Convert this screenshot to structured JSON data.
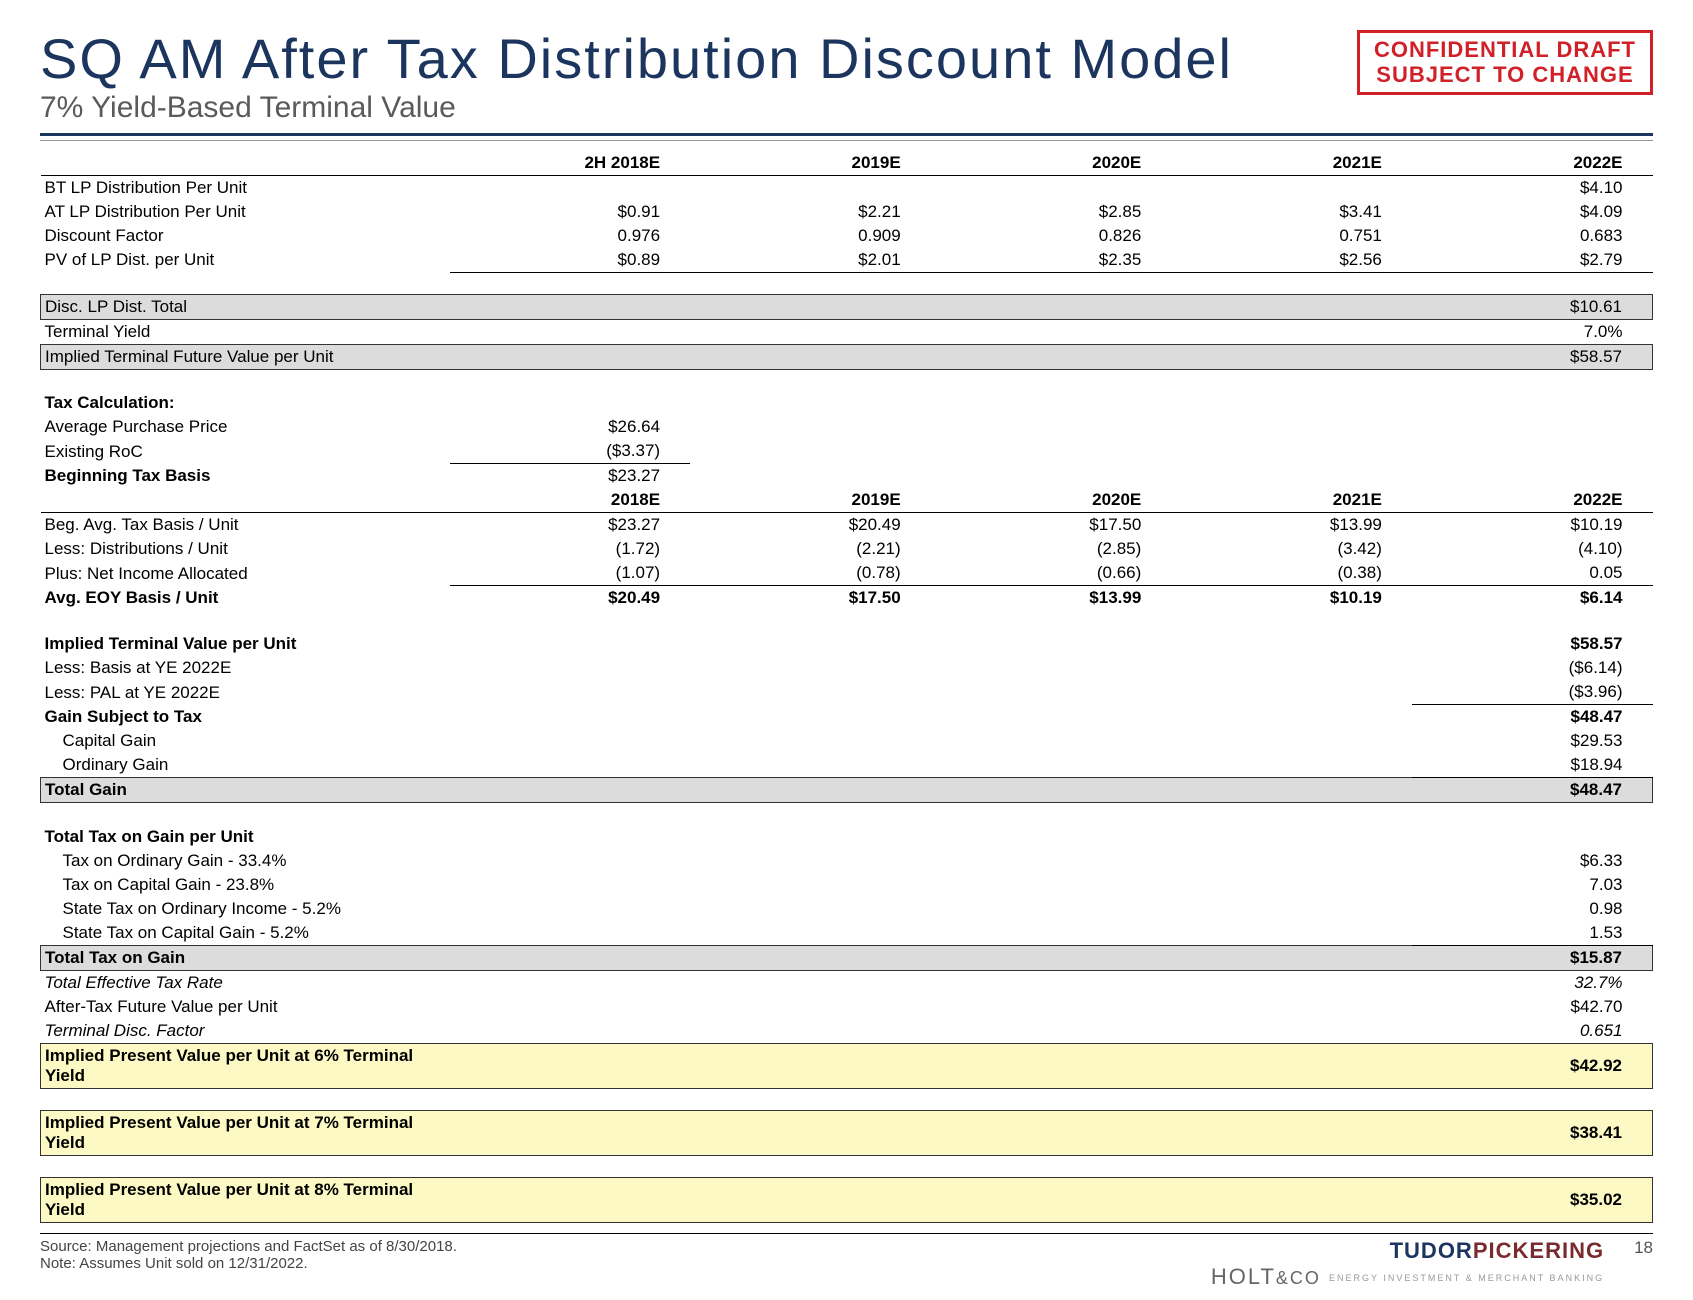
{
  "header": {
    "title": "SQ AM After Tax Distribution Discount Model",
    "subtitle": "7% Yield-Based Terminal Value",
    "stamp_line1": "CONFIDENTIAL DRAFT",
    "stamp_line2": "SUBJECT TO CHANGE"
  },
  "columns1": [
    "2H 2018E",
    "2019E",
    "2020E",
    "2021E",
    "2022E"
  ],
  "columns2": [
    "2018E",
    "2019E",
    "2020E",
    "2021E",
    "2022E"
  ],
  "rows": {
    "bt_dist": {
      "label": "BT LP Distribution Per Unit",
      "v": [
        "",
        "",
        "",
        "",
        "$4.10"
      ]
    },
    "at_dist": {
      "label": "AT LP Distribution Per Unit",
      "v": [
        "$0.91",
        "$2.21",
        "$2.85",
        "$3.41",
        "$4.09"
      ]
    },
    "disc_factor": {
      "label": "Discount Factor",
      "v": [
        "0.976",
        "0.909",
        "0.826",
        "0.751",
        "0.683"
      ]
    },
    "pv_dist": {
      "label": "PV of LP Dist. per Unit",
      "v": [
        "$0.89",
        "$2.01",
        "$2.35",
        "$2.56",
        "$2.79"
      ]
    },
    "disc_total": {
      "label": "Disc. LP Dist. Total",
      "v": [
        "",
        "",
        "",
        "",
        "$10.61"
      ]
    },
    "term_yield": {
      "label": "Terminal Yield",
      "v": [
        "",
        "",
        "",
        "",
        "7.0%"
      ]
    },
    "impl_term_fut": {
      "label": "Implied Terminal Future Value per Unit",
      "v": [
        "",
        "",
        "",
        "",
        "$58.57"
      ]
    },
    "tax_calc_hdr": {
      "label": "Tax Calculation:"
    },
    "avg_price": {
      "label": "Average Purchase Price",
      "v": [
        "$26.64",
        "",
        "",
        "",
        ""
      ]
    },
    "exist_roc": {
      "label": "Existing RoC",
      "v": [
        "($3.37)",
        "",
        "",
        "",
        ""
      ]
    },
    "beg_tax_basis": {
      "label": "Beginning Tax Basis",
      "v": [
        "$23.27",
        "",
        "",
        "",
        ""
      ]
    },
    "beg_avg": {
      "label": "Beg. Avg. Tax Basis / Unit",
      "v": [
        "$23.27",
        "$20.49",
        "$17.50",
        "$13.99",
        "$10.19"
      ]
    },
    "less_dist": {
      "label": "Less: Distributions / Unit",
      "v": [
        "(1.72)",
        "(2.21)",
        "(2.85)",
        "(3.42)",
        "(4.10)"
      ]
    },
    "plus_net": {
      "label": "Plus: Net Income Allocated",
      "v": [
        "(1.07)",
        "(0.78)",
        "(0.66)",
        "(0.38)",
        "0.05"
      ]
    },
    "avg_eoy": {
      "label": "Avg. EOY Basis / Unit",
      "v": [
        "$20.49",
        "$17.50",
        "$13.99",
        "$10.19",
        "$6.14"
      ]
    },
    "impl_term_val": {
      "label": "Implied Terminal Value per Unit",
      "v": [
        "",
        "",
        "",
        "",
        "$58.57"
      ]
    },
    "less_basis": {
      "label": "Less: Basis at YE 2022E",
      "v": [
        "",
        "",
        "",
        "",
        "($6.14)"
      ]
    },
    "less_pal": {
      "label": "Less: PAL at YE 2022E",
      "v": [
        "",
        "",
        "",
        "",
        "($3.96)"
      ]
    },
    "gain_subj": {
      "label": "Gain Subject to Tax",
      "v": [
        "",
        "",
        "",
        "",
        "$48.47"
      ]
    },
    "cap_gain": {
      "label": "Capital Gain",
      "v": [
        "",
        "",
        "",
        "",
        "$29.53"
      ]
    },
    "ord_gain": {
      "label": "Ordinary Gain",
      "v": [
        "",
        "",
        "",
        "",
        "$18.94"
      ]
    },
    "total_gain": {
      "label": "Total Gain",
      "v": [
        "",
        "",
        "",
        "",
        "$48.47"
      ]
    },
    "tot_tax_hdr": {
      "label": "Total Tax on Gain per Unit"
    },
    "tax_ord": {
      "label": "Tax on Ordinary Gain - 33.4%",
      "v": [
        "",
        "",
        "",
        "",
        "$6.33"
      ]
    },
    "tax_cap": {
      "label": "Tax on Capital Gain - 23.8%",
      "v": [
        "",
        "",
        "",
        "",
        "7.03"
      ]
    },
    "state_ord": {
      "label": "State Tax on Ordinary Income - 5.2%",
      "v": [
        "",
        "",
        "",
        "",
        "0.98"
      ]
    },
    "state_cap": {
      "label": "State Tax on Capital Gain - 5.2%",
      "v": [
        "",
        "",
        "",
        "",
        "1.53"
      ]
    },
    "tot_tax_gain": {
      "label": "Total Tax on Gain",
      "v": [
        "",
        "",
        "",
        "",
        "$15.87"
      ]
    },
    "tot_eff_rate": {
      "label": "Total Effective Tax Rate",
      "v": [
        "",
        "",
        "",
        "",
        "32.7%"
      ]
    },
    "at_fut_val": {
      "label": "After-Tax Future Value per Unit",
      "v": [
        "",
        "",
        "",
        "",
        "$42.70"
      ]
    },
    "term_disc_f": {
      "label": "Terminal Disc. Factor",
      "v": [
        "",
        "",
        "",
        "",
        "0.651"
      ]
    },
    "pv_6": {
      "label": "Implied Present Value per Unit at 6% Terminal Yield",
      "v": [
        "",
        "",
        "",
        "",
        "$42.92"
      ]
    },
    "pv_7": {
      "label": "Implied Present Value per Unit at 7% Terminal Yield",
      "v": [
        "",
        "",
        "",
        "",
        "$38.41"
      ]
    },
    "pv_8": {
      "label": "Implied Present Value per Unit at 8% Terminal Yield",
      "v": [
        "",
        "",
        "",
        "",
        "$35.02"
      ]
    }
  },
  "footer": {
    "source": "Source: Management projections and FactSet as of 8/30/2018.",
    "note": "Note: Assumes Unit sold on 12/31/2022.",
    "logo_a1": "TUDOR",
    "logo_a2": "PICKERING",
    "logo_b1": "HOLT",
    "logo_b2": "&CO",
    "logo_tiny": "ENERGY INVESTMENT & MERCHANT BANKING",
    "page": "18"
  }
}
